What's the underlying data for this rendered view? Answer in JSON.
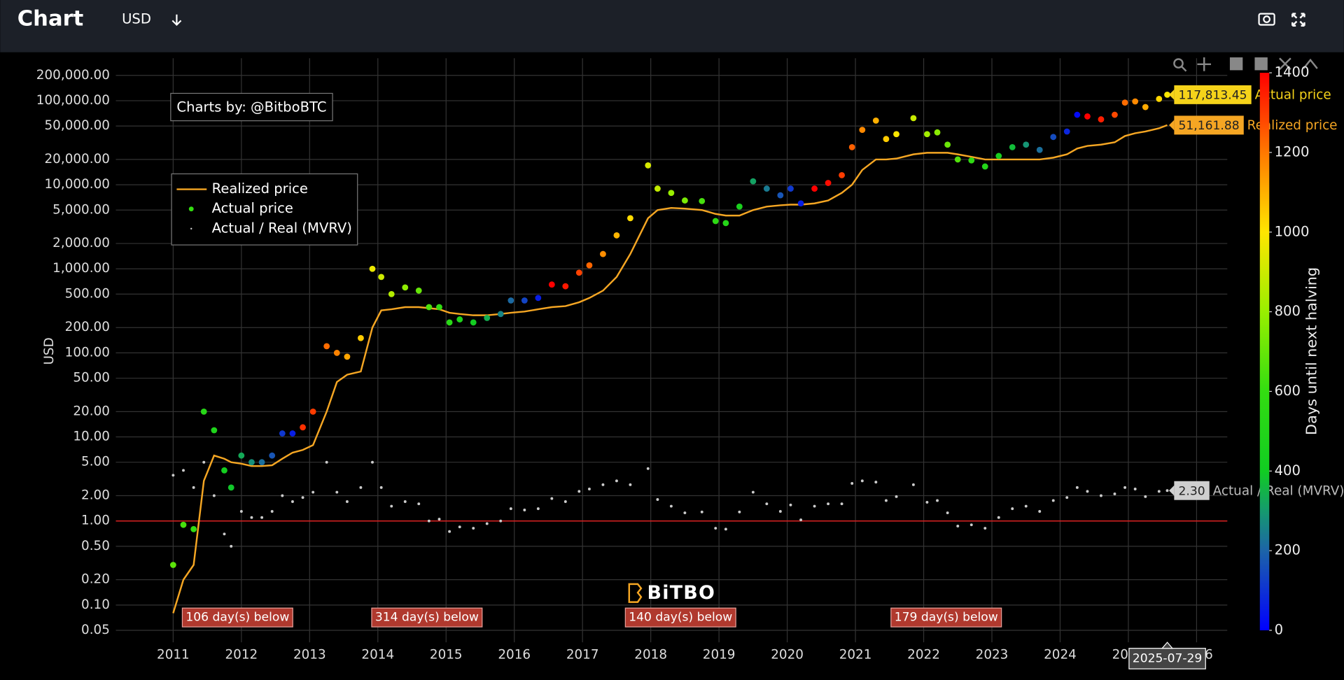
{
  "header": {
    "title": "Chart",
    "currency": "USD"
  },
  "chart_data": {
    "type": "scatter",
    "credit": "Charts by: @BitboBTC",
    "watermark": "BiTBO",
    "hover_date": "2025-07-29",
    "y_label": "USD",
    "log_y": true,
    "grid": true,
    "reference_line": 1,
    "x": [
      2011.0,
      2011.15,
      2011.3,
      2011.45,
      2011.6,
      2011.75,
      2011.85,
      2012.0,
      2012.15,
      2012.3,
      2012.45,
      2012.6,
      2012.75,
      2012.9,
      2013.05,
      2013.25,
      2013.4,
      2013.55,
      2013.75,
      2013.92,
      2014.05,
      2014.2,
      2014.4,
      2014.6,
      2014.75,
      2014.9,
      2015.05,
      2015.2,
      2015.4,
      2015.6,
      2015.8,
      2015.95,
      2016.15,
      2016.35,
      2016.55,
      2016.75,
      2016.95,
      2017.1,
      2017.3,
      2017.5,
      2017.7,
      2017.96,
      2018.1,
      2018.3,
      2018.5,
      2018.75,
      2018.95,
      2019.1,
      2019.3,
      2019.5,
      2019.7,
      2019.9,
      2020.05,
      2020.2,
      2020.4,
      2020.6,
      2020.8,
      2020.95,
      2021.1,
      2021.3,
      2021.45,
      2021.6,
      2021.85,
      2022.05,
      2022.2,
      2022.35,
      2022.5,
      2022.7,
      2022.9,
      2023.1,
      2023.3,
      2023.5,
      2023.7,
      2023.9,
      2024.1,
      2024.25,
      2024.4,
      2024.6,
      2024.8,
      2024.95,
      2025.1,
      2025.25,
      2025.45,
      2025.57
    ],
    "series": [
      {
        "name": "Realized price",
        "color": "#f5a623",
        "value_label": "51,161.88",
        "values": [
          0.08,
          0.2,
          0.3,
          3,
          6,
          5.5,
          5,
          4.8,
          4.5,
          4.5,
          4.6,
          5.5,
          6.5,
          7,
          8,
          20,
          45,
          55,
          60,
          200,
          320,
          330,
          350,
          350,
          340,
          330,
          300,
          290,
          280,
          280,
          290,
          300,
          310,
          330,
          350,
          360,
          400,
          450,
          550,
          800,
          1500,
          4000,
          5000,
          5300,
          5200,
          5000,
          4500,
          4300,
          4300,
          5000,
          5500,
          5700,
          5800,
          5800,
          6000,
          6500,
          8000,
          10000,
          15000,
          20000,
          20000,
          20500,
          23000,
          24000,
          24000,
          24000,
          23000,
          21500,
          20000,
          20000,
          20000,
          20000,
          20000,
          21000,
          23000,
          27000,
          29000,
          30000,
          32000,
          38000,
          41000,
          43000,
          47000,
          51161.88
        ]
      },
      {
        "name": "Actual price",
        "color": "#33dd11",
        "value_label": "117,813.45",
        "values": [
          0.3,
          0.9,
          0.8,
          20,
          12,
          4,
          2.5,
          6,
          5,
          5,
          6,
          11,
          11,
          13,
          20,
          120,
          100,
          90,
          150,
          1000,
          800,
          500,
          600,
          550,
          350,
          350,
          230,
          250,
          230,
          260,
          290,
          420,
          420,
          450,
          650,
          620,
          900,
          1100,
          1500,
          2500,
          4000,
          17000,
          9000,
          8000,
          6500,
          6400,
          3700,
          3500,
          5500,
          11000,
          9000,
          7500,
          9000,
          6000,
          9000,
          10500,
          13000,
          28000,
          45000,
          58000,
          35000,
          40000,
          62000,
          40000,
          42000,
          30000,
          20000,
          19500,
          16500,
          22000,
          28000,
          30000,
          26000,
          37000,
          43000,
          68000,
          65000,
          60000,
          68000,
          95000,
          98000,
          84000,
          105000,
          117813.45
        ],
        "color_values": [
          680,
          640,
          590,
          530,
          480,
          420,
          390,
          330,
          280,
          220,
          170,
          110,
          60,
          1320,
          1300,
          1220,
          1180,
          1120,
          1050,
          960,
          900,
          850,
          780,
          700,
          650,
          590,
          540,
          480,
          410,
          340,
          260,
          210,
          135,
          60,
          1420,
          1360,
          1290,
          1230,
          1160,
          1090,
          1020,
          920,
          880,
          800,
          740,
          640,
          570,
          520,
          450,
          315,
          240,
          170,
          115,
          60,
          1440,
          1380,
          1300,
          1240,
          1170,
          1100,
          1050,
          990,
          890,
          820,
          770,
          710,
          660,
          580,
          510,
          440,
          370,
          290,
          220,
          150,
          75,
          20,
          1420,
          1350,
          1280,
          1220,
          1170,
          1110,
          1030,
          990
        ]
      },
      {
        "name": "Actual / Real (MVRV)",
        "color": "#cccccc",
        "value_label": "2.30",
        "values": [
          3.5,
          4,
          2.5,
          5,
          2,
          0.7,
          0.5,
          1.3,
          1.1,
          1.1,
          1.3,
          2,
          1.7,
          1.9,
          2.2,
          5,
          2.2,
          1.7,
          2.5,
          5,
          2.5,
          1.5,
          1.7,
          1.6,
          1.0,
          1.05,
          0.75,
          0.85,
          0.82,
          0.93,
          1.0,
          1.4,
          1.35,
          1.4,
          1.85,
          1.7,
          2.25,
          2.4,
          2.7,
          3,
          2.7,
          4.2,
          1.8,
          1.5,
          1.25,
          1.28,
          0.82,
          0.8,
          1.28,
          2.2,
          1.6,
          1.3,
          1.55,
          1.03,
          1.5,
          1.6,
          1.6,
          2.8,
          3.0,
          2.9,
          1.75,
          1.95,
          2.7,
          1.67,
          1.75,
          1.25,
          0.87,
          0.9,
          0.82,
          1.1,
          1.4,
          1.5,
          1.3,
          1.75,
          1.9,
          2.5,
          2.25,
          2.0,
          2.1,
          2.5,
          2.4,
          1.95,
          2.25,
          2.3
        ]
      }
    ],
    "xlim": [
      2010.16,
      2026.45
    ],
    "xticks": [
      2011,
      2012,
      2013,
      2014,
      2015,
      2016,
      2017,
      2018,
      2019,
      2020,
      2021,
      2022,
      2023,
      2024,
      2025,
      2026
    ],
    "ylim": [
      0.036,
      320000
    ],
    "yticks": [
      {
        "value": 0.05,
        "label": "0.05"
      },
      {
        "value": 0.1,
        "label": "0.10"
      },
      {
        "value": 0.2,
        "label": "0.20"
      },
      {
        "value": 0.5,
        "label": "0.50"
      },
      {
        "value": 1,
        "label": "1.00"
      },
      {
        "value": 2,
        "label": "2.00"
      },
      {
        "value": 5,
        "label": "5.00"
      },
      {
        "value": 10,
        "label": "10.00"
      },
      {
        "value": 20,
        "label": "20.00"
      },
      {
        "value": 50,
        "label": "50.00"
      },
      {
        "value": 100,
        "label": "100.00"
      },
      {
        "value": 200,
        "label": "200.00"
      },
      {
        "value": 500,
        "label": "500.00"
      },
      {
        "value": 1000,
        "label": "1,000.00"
      },
      {
        "value": 2000,
        "label": "2,000.00"
      },
      {
        "value": 5000,
        "label": "5,000.00"
      },
      {
        "value": 10000,
        "label": "10,000.00"
      },
      {
        "value": 20000,
        "label": "20,000.00"
      },
      {
        "value": 50000,
        "label": "50,000.00"
      },
      {
        "value": 100000,
        "label": "100,000.00"
      },
      {
        "value": 200000,
        "label": "200,000.00"
      }
    ],
    "colorbar": {
      "title": "Days until next halving",
      "lim": [
        0,
        1400
      ],
      "ticks": [
        0,
        200,
        400,
        600,
        800,
        1000,
        1200,
        1400
      ],
      "colorscale": [
        [
          0,
          "#0000ff"
        ],
        [
          200,
          "#1c64a8"
        ],
        [
          300,
          "#159a6e"
        ],
        [
          400,
          "#11cc22"
        ],
        [
          600,
          "#33dd11"
        ],
        [
          800,
          "#99ee00"
        ],
        [
          1000,
          "#ffe600"
        ],
        [
          1100,
          "#ffb000"
        ],
        [
          1200,
          "#ff7800"
        ],
        [
          1400,
          "#ff0000"
        ]
      ]
    },
    "annotations": [
      "106 day(s) below",
      "314 day(s) below",
      "140 day(s) below",
      "179 day(s) below"
    ]
  }
}
